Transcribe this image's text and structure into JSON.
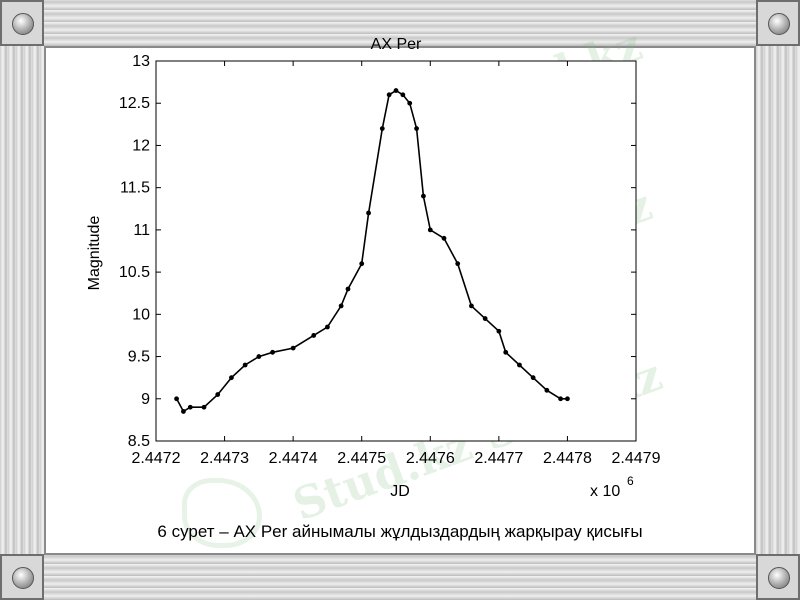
{
  "chart_data": {
    "type": "line",
    "title": "AX Per",
    "xlabel": "JD",
    "ylabel": "Magnitude",
    "x_multiplier": "x 10",
    "x_multiplier_exp": "6",
    "xlim": [
      2.4472,
      2.4479
    ],
    "ylim": [
      8.5,
      13
    ],
    "x_ticks": [
      2.4472,
      2.4473,
      2.4474,
      2.4475,
      2.4476,
      2.4477,
      2.4478,
      2.4479
    ],
    "x_tick_labels": [
      "2.4472",
      "2.4473",
      "2.4474",
      "2.4475",
      "2.4476",
      "2.4477",
      "2.4478",
      "2.4479"
    ],
    "y_ticks": [
      8.5,
      9,
      9.5,
      10,
      10.5,
      11,
      11.5,
      12,
      12.5,
      13
    ],
    "y_tick_labels": [
      "8.5",
      "9",
      "9.5",
      "10",
      "10.5",
      "11",
      "11.5",
      "12",
      "12.5",
      "13"
    ],
    "grid": false,
    "series": [
      {
        "x": [
          2.44723,
          2.44724,
          2.44725,
          2.44727,
          2.44729,
          2.44731,
          2.44733,
          2.44735,
          2.44737,
          2.4474,
          2.44743,
          2.44745,
          2.44747,
          2.44748,
          2.4475,
          2.44751,
          2.44753,
          2.44754,
          2.44755,
          2.44756,
          2.44757,
          2.44758,
          2.44759,
          2.4476,
          2.44762,
          2.44764,
          2.44766,
          2.44768,
          2.4477,
          2.44771,
          2.44773,
          2.44775,
          2.44777,
          2.44779,
          2.4478
        ],
        "y": [
          9.0,
          8.85,
          8.9,
          8.9,
          9.05,
          9.25,
          9.4,
          9.5,
          9.55,
          9.6,
          9.75,
          9.85,
          10.1,
          10.3,
          10.6,
          11.2,
          12.2,
          12.6,
          12.65,
          12.6,
          12.5,
          12.2,
          11.4,
          11.0,
          10.9,
          10.6,
          10.1,
          9.95,
          9.8,
          9.55,
          9.4,
          9.25,
          9.1,
          9.0,
          9.0
        ]
      }
    ]
  },
  "caption": {
    "text": "6 сурет –  AX Per айнымалы жұлдыздардың жарқырау қисығы"
  },
  "watermark": {
    "text": "Stud.kz"
  }
}
